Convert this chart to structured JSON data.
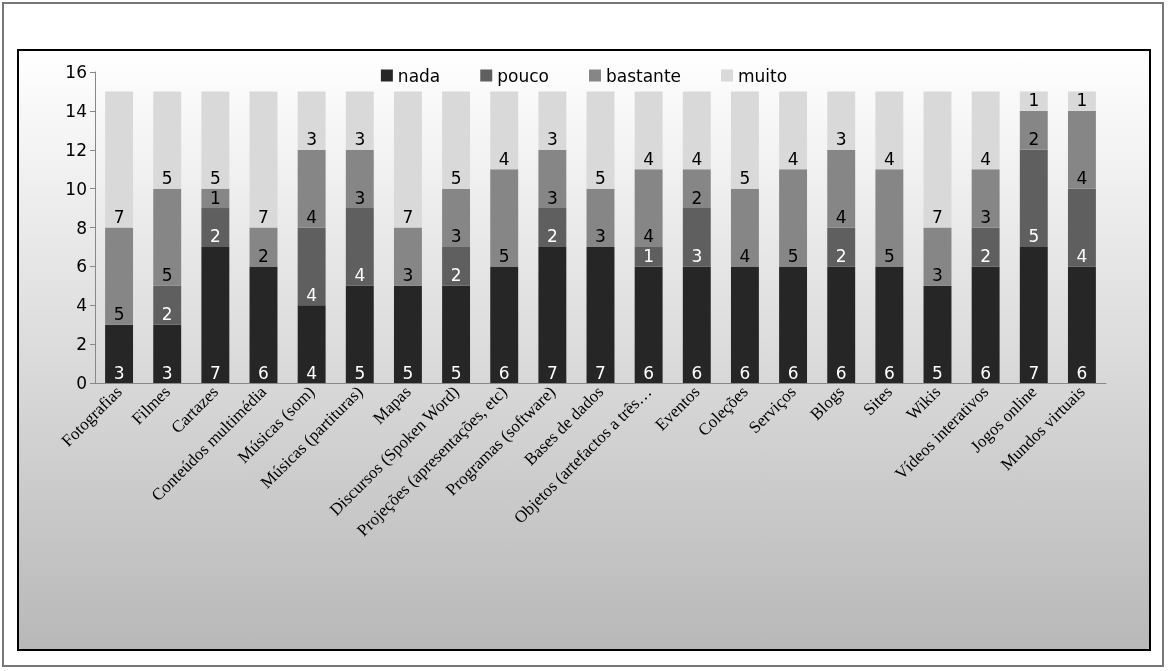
{
  "chart_data": {
    "type": "bar",
    "stacked": true,
    "categories": [
      "Fotografias",
      "Filmes",
      "Cartazes",
      "Conteúdos multimédia",
      "Músicas (som)",
      "Músicas (partituras)",
      "Mapas",
      "Discursos (Spoken Word)",
      "Projeções (apresentações, etc)",
      "Programas (software)",
      "Bases de dados",
      "Objetos (artefactos a três…",
      "Eventos",
      "Coleções",
      "Serviços",
      "Blogs",
      "Sites",
      "Wikis",
      "Vídeos interativos",
      "Jogos online",
      "Mundos virtuais"
    ],
    "series": [
      {
        "name": "nada",
        "color": "#262626",
        "values": [
          3,
          3,
          7,
          6,
          4,
          5,
          5,
          5,
          6,
          7,
          7,
          6,
          6,
          6,
          6,
          6,
          6,
          5,
          6,
          7,
          6
        ],
        "value_labels": [
          "3",
          "3",
          "7",
          "6",
          "4",
          "5",
          "5",
          "5",
          "6",
          "7",
          "7",
          "6",
          "6",
          "6",
          "6",
          "6",
          "6",
          "5",
          "6",
          "7",
          "6"
        ]
      },
      {
        "name": "pouco",
        "color": "#5f5f5f",
        "values": [
          0,
          2,
          2,
          0,
          4,
          4,
          0,
          2,
          0,
          2,
          0,
          1,
          3,
          0,
          0,
          2,
          0,
          0,
          2,
          5,
          4
        ],
        "value_labels": [
          null,
          "2",
          "2",
          null,
          "4",
          "4",
          null,
          "2",
          null,
          "2",
          null,
          "1",
          "3",
          null,
          null,
          "2",
          null,
          null,
          "2",
          "5",
          "4"
        ]
      },
      {
        "name": "bastante",
        "color": "#868686",
        "values": [
          5,
          5,
          1,
          2,
          4,
          3,
          3,
          3,
          5,
          3,
          3,
          4,
          2,
          4,
          5,
          4,
          5,
          3,
          3,
          2,
          4
        ],
        "value_labels": [
          "5",
          "5",
          "1",
          "2",
          "4",
          "3",
          "3",
          "3",
          "5",
          "3",
          "3",
          "4",
          "2",
          "4",
          "5",
          "4",
          "5",
          "3",
          "3",
          "2",
          "4"
        ]
      },
      {
        "name": "muito",
        "color": "#d9d9d9",
        "values": [
          7,
          5,
          5,
          7,
          3,
          3,
          7,
          5,
          4,
          3,
          5,
          4,
          4,
          5,
          4,
          3,
          4,
          7,
          4,
          1,
          1
        ],
        "value_labels": [
          "7",
          "5",
          "5",
          "7",
          "3",
          "3",
          "7",
          "5",
          "4",
          "3",
          "5",
          "4",
          "4",
          "5",
          "4",
          "3",
          "4",
          "7",
          "4",
          "1",
          "1"
        ]
      }
    ],
    "ylim": [
      0,
      16
    ],
    "yticks": [
      0,
      2,
      4,
      6,
      8,
      10,
      12,
      14,
      16
    ],
    "grid": false,
    "legend": "top"
  }
}
